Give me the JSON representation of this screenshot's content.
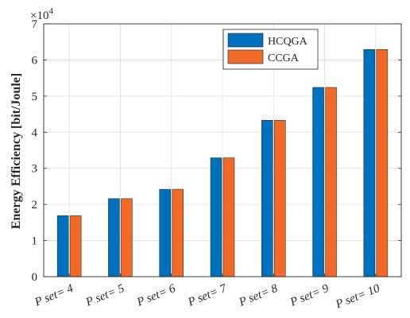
{
  "chart_data": {
    "type": "bar",
    "title": "",
    "xlabel": "",
    "ylabel": "Energy Efficiency [bit/Joule]",
    "y_multiplier_label": "×10",
    "y_multiplier_exponent": "4",
    "ylim": [
      0,
      70000
    ],
    "ytick_values": [
      0,
      10000,
      20000,
      30000,
      40000,
      50000,
      60000,
      70000
    ],
    "ytick_labels": [
      "0",
      "1",
      "2",
      "3",
      "4",
      "5",
      "6",
      "7"
    ],
    "grid": true,
    "legend_position": "top-right",
    "categories": [
      "P set= 4",
      "P set= 5",
      "P set= 6",
      "P set= 7",
      "P set= 8",
      "P set= 9",
      "P set= 10"
    ],
    "series": [
      {
        "name": "HCQGA",
        "color": "#0072BD",
        "values": [
          16900,
          21600,
          24200,
          32900,
          43300,
          52400,
          62900
        ]
      },
      {
        "name": "CCGA",
        "color": "#F06A2A",
        "values": [
          16900,
          21600,
          24200,
          32900,
          43300,
          52400,
          62900
        ]
      }
    ]
  }
}
